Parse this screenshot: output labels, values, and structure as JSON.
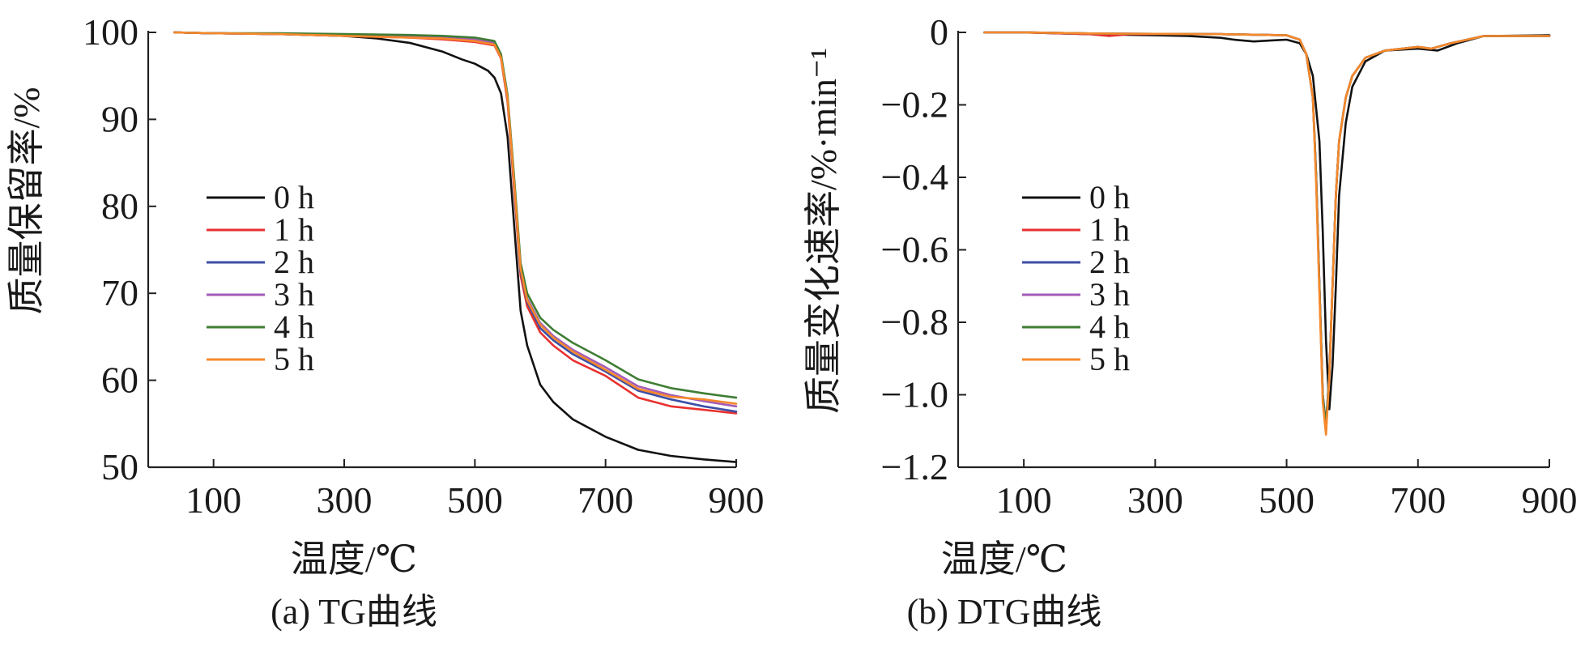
{
  "colors": {
    "0 h": "#111111",
    "1 h": "#e8312f",
    "2 h": "#3c4ea6",
    "3 h": "#a35cb7",
    "4 h": "#3f7d33",
    "5 h": "#f6882a"
  },
  "chart_data": [
    {
      "type": "line",
      "caption": "(a) TG曲线",
      "xlabel": "温度/℃",
      "ylabel": "质量保留率/%",
      "xlim": [
        0,
        900
      ],
      "ylim": [
        50,
        100
      ],
      "xticks": [
        100,
        300,
        500,
        700,
        900
      ],
      "yticks": [
        50,
        60,
        70,
        80,
        90,
        100
      ],
      "grid": false,
      "legend_position": "center-left",
      "series": [
        {
          "name": "0 h",
          "x": [
            40,
            100,
            200,
            300,
            350,
            400,
            450,
            480,
            500,
            520,
            530,
            540,
            550,
            560,
            570,
            580,
            600,
            620,
            650,
            700,
            750,
            800,
            850,
            900
          ],
          "y": [
            100,
            99.9,
            99.8,
            99.6,
            99.3,
            98.8,
            97.8,
            96.9,
            96.4,
            95.6,
            94.8,
            93,
            88,
            78,
            68,
            64,
            59.5,
            57.5,
            55.5,
            53.5,
            52,
            51.3,
            50.9,
            50.6
          ]
        },
        {
          "name": "1 h",
          "x": [
            40,
            100,
            200,
            300,
            400,
            450,
            500,
            530,
            540,
            550,
            560,
            570,
            580,
            600,
            620,
            650,
            700,
            750,
            800,
            850,
            900
          ],
          "y": [
            100,
            99.9,
            99.8,
            99.6,
            99.4,
            99.2,
            98.9,
            98.5,
            97,
            92,
            82,
            72,
            68.5,
            65.5,
            64,
            62.3,
            60.5,
            58,
            57,
            56.6,
            56.2
          ]
        },
        {
          "name": "2 h",
          "x": [
            40,
            100,
            200,
            300,
            400,
            450,
            500,
            530,
            540,
            550,
            560,
            570,
            580,
            600,
            620,
            650,
            700,
            750,
            800,
            850,
            900
          ],
          "y": [
            100,
            99.9,
            99.8,
            99.6,
            99.5,
            99.4,
            99.1,
            98.7,
            97.2,
            92.3,
            82.5,
            72.5,
            69,
            66,
            64.6,
            63,
            61,
            58.8,
            57.8,
            57,
            56.4
          ]
        },
        {
          "name": "3 h",
          "x": [
            40,
            100,
            200,
            300,
            400,
            450,
            500,
            530,
            540,
            550,
            560,
            570,
            580,
            600,
            620,
            650,
            700,
            750,
            800,
            850,
            900
          ],
          "y": [
            100,
            99.9,
            99.8,
            99.7,
            99.5,
            99.4,
            99.2,
            98.8,
            97.3,
            92.5,
            83,
            73,
            69.4,
            66.6,
            65.1,
            63.5,
            61.5,
            59.3,
            58.3,
            57.6,
            57
          ]
        },
        {
          "name": "4 h",
          "x": [
            40,
            100,
            200,
            300,
            400,
            450,
            500,
            530,
            540,
            550,
            560,
            570,
            580,
            600,
            620,
            650,
            700,
            750,
            800,
            850,
            900
          ],
          "y": [
            100,
            99.9,
            99.9,
            99.8,
            99.7,
            99.6,
            99.4,
            99,
            97.5,
            92.8,
            83.5,
            73.5,
            70,
            67.2,
            65.8,
            64.3,
            62.3,
            60.1,
            59.1,
            58.5,
            58
          ]
        },
        {
          "name": "5 h",
          "x": [
            40,
            100,
            200,
            300,
            400,
            450,
            500,
            530,
            540,
            550,
            560,
            570,
            580,
            600,
            620,
            650,
            700,
            750,
            800,
            850,
            900
          ],
          "y": [
            100,
            99.9,
            99.8,
            99.6,
            99.4,
            99.3,
            99,
            98.6,
            97.1,
            92.4,
            82.8,
            72.8,
            69.2,
            66.4,
            64.9,
            63.3,
            61.2,
            59,
            58.1,
            57.8,
            57.3
          ]
        }
      ]
    },
    {
      "type": "line",
      "caption": "(b) DTG曲线",
      "xlabel": "温度/℃",
      "ylabel": "质量变化速率/%·min⁻¹",
      "xlim": [
        0,
        900
      ],
      "ylim": [
        -1.2,
        0
      ],
      "xticks": [
        100,
        300,
        500,
        700,
        900
      ],
      "yticks": [
        0,
        -0.2,
        -0.4,
        -0.6,
        -0.8,
        -1.0,
        -1.2
      ],
      "ytick_labels": [
        "0",
        "−0.2",
        "−0.4",
        "−0.6",
        "−0.8",
        "−1.0",
        "−1.2"
      ],
      "grid": false,
      "legend_position": "center-left",
      "series": [
        {
          "name": "0 h",
          "x": [
            40,
            100,
            200,
            300,
            350,
            400,
            420,
            450,
            480,
            500,
            520,
            530,
            540,
            550,
            555,
            560,
            565,
            570,
            575,
            580,
            590,
            600,
            620,
            650,
            700,
            730,
            760,
            800,
            900
          ],
          "y": [
            0,
            0,
            -0.005,
            -0.008,
            -0.01,
            -0.015,
            -0.02,
            -0.025,
            -0.022,
            -0.02,
            -0.03,
            -0.06,
            -0.12,
            -0.3,
            -0.55,
            -0.85,
            -1.04,
            -0.92,
            -0.7,
            -0.45,
            -0.25,
            -0.15,
            -0.08,
            -0.05,
            -0.045,
            -0.05,
            -0.03,
            -0.01,
            -0.008
          ]
        },
        {
          "name": "1 h",
          "x": [
            40,
            100,
            200,
            230,
            260,
            300,
            400,
            500,
            520,
            530,
            540,
            545,
            550,
            555,
            560,
            565,
            570,
            575,
            580,
            590,
            600,
            620,
            650,
            700,
            720,
            750,
            800,
            900
          ],
          "y": [
            0,
            0,
            -0.005,
            -0.01,
            -0.005,
            -0.005,
            -0.005,
            -0.008,
            -0.02,
            -0.06,
            -0.18,
            -0.4,
            -0.7,
            -1.0,
            -1.1,
            -0.95,
            -0.7,
            -0.45,
            -0.3,
            -0.18,
            -0.12,
            -0.07,
            -0.05,
            -0.04,
            -0.045,
            -0.03,
            -0.01,
            -0.01
          ]
        },
        {
          "name": "2 h",
          "x": [
            40,
            100,
            200,
            300,
            400,
            500,
            520,
            530,
            540,
            545,
            550,
            555,
            560,
            565,
            570,
            575,
            580,
            590,
            600,
            620,
            650,
            700,
            720,
            750,
            800,
            900
          ],
          "y": [
            0,
            0,
            -0.003,
            -0.004,
            -0.005,
            -0.008,
            -0.02,
            -0.06,
            -0.18,
            -0.4,
            -0.7,
            -1.0,
            -1.08,
            -0.94,
            -0.7,
            -0.45,
            -0.3,
            -0.18,
            -0.12,
            -0.07,
            -0.05,
            -0.04,
            -0.045,
            -0.03,
            -0.01,
            -0.01
          ]
        },
        {
          "name": "3 h",
          "x": [
            40,
            100,
            200,
            300,
            400,
            500,
            520,
            530,
            540,
            545,
            550,
            555,
            560,
            565,
            570,
            575,
            580,
            590,
            600,
            620,
            650,
            700,
            720,
            750,
            800,
            900
          ],
          "y": [
            0,
            0,
            -0.003,
            -0.004,
            -0.005,
            -0.008,
            -0.02,
            -0.06,
            -0.18,
            -0.4,
            -0.7,
            -1.0,
            -1.09,
            -0.94,
            -0.7,
            -0.45,
            -0.3,
            -0.18,
            -0.12,
            -0.07,
            -0.05,
            -0.04,
            -0.045,
            -0.03,
            -0.01,
            -0.01
          ]
        },
        {
          "name": "4 h",
          "x": [
            40,
            100,
            200,
            300,
            400,
            500,
            520,
            530,
            540,
            545,
            550,
            555,
            560,
            565,
            570,
            575,
            580,
            590,
            600,
            620,
            650,
            700,
            720,
            750,
            800,
            900
          ],
          "y": [
            0,
            0,
            -0.003,
            -0.004,
            -0.005,
            -0.008,
            -0.02,
            -0.06,
            -0.18,
            -0.4,
            -0.7,
            -1.0,
            -1.09,
            -0.94,
            -0.7,
            -0.45,
            -0.3,
            -0.18,
            -0.12,
            -0.07,
            -0.05,
            -0.04,
            -0.045,
            -0.03,
            -0.01,
            -0.01
          ]
        },
        {
          "name": "5 h",
          "x": [
            40,
            100,
            200,
            300,
            400,
            500,
            520,
            530,
            540,
            545,
            550,
            555,
            560,
            565,
            570,
            575,
            580,
            590,
            600,
            620,
            650,
            700,
            720,
            750,
            800,
            900
          ],
          "y": [
            0,
            0,
            -0.003,
            -0.004,
            -0.005,
            -0.008,
            -0.02,
            -0.06,
            -0.18,
            -0.42,
            -0.72,
            -1.02,
            -1.11,
            -0.95,
            -0.7,
            -0.45,
            -0.3,
            -0.18,
            -0.12,
            -0.07,
            -0.05,
            -0.04,
            -0.045,
            -0.03,
            -0.01,
            -0.01
          ]
        }
      ]
    }
  ]
}
